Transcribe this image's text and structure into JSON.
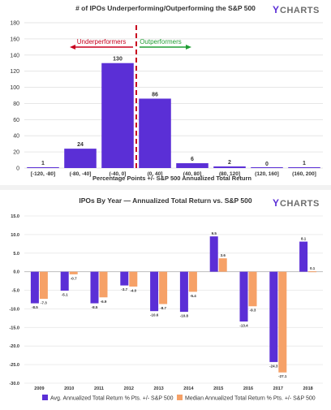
{
  "brand": {
    "logo_text": "YCHARTS",
    "colors": {
      "purple": "#5b2fd6",
      "orange": "#f6a167",
      "red": "#c8001e",
      "green": "#1f9e33",
      "logo_gray": "#6d6d6d"
    }
  },
  "chart_data": [
    {
      "type": "bar",
      "title": "# of IPOs Underperforming/Outperforming the S&P 500",
      "xlabel": "Percentage Points +/- S&P 500 Annualized Total Return",
      "ylabel": "",
      "categories": [
        "[-120, -80]",
        "(-80, -40]",
        "(-40, 0]",
        "(0, 40]",
        "(40, 80]",
        "(80, 120]",
        "(120, 160]",
        "(160, 200]"
      ],
      "values": [
        1,
        24,
        130,
        86,
        6,
        2,
        0,
        1
      ],
      "ylim": [
        0,
        180
      ],
      "yticks": [
        0,
        20,
        40,
        60,
        80,
        100,
        120,
        140,
        160,
        180
      ],
      "grid": true,
      "annotations": {
        "left_label": "Underperformers",
        "right_label": "Outperformers"
      }
    },
    {
      "type": "bar",
      "title": "IPOs By Year — Annualized Total Return vs. S&P 500",
      "xlabel": "",
      "ylabel": "",
      "categories": [
        "2009",
        "2010",
        "2011",
        "2012",
        "2013",
        "2014",
        "2015",
        "2016",
        "2017",
        "2018"
      ],
      "series": [
        {
          "name": "Avg. Annualized Total Return % Pts. +/- S&P 500",
          "values": [
            -8.5,
            -5.1,
            -8.5,
            -3.7,
            -10.6,
            -10.8,
            9.5,
            -13.4,
            -24.3,
            8.1
          ]
        },
        {
          "name": "Median Annualized Total Return % Pts. +/- S&P 500",
          "values": [
            -7.3,
            -0.7,
            -6.9,
            -4.0,
            -8.7,
            -5.4,
            3.6,
            -9.3,
            -27.1,
            0.1
          ]
        }
      ],
      "value_labels": [
        [
          "-8.5",
          "-5.1",
          "-8.5",
          "-3.7",
          "-10.6",
          "-10.8",
          "9.5",
          "-13.4",
          "-24.3",
          "8.1"
        ],
        [
          "-7.3",
          "-0.7",
          "-6.9",
          "-4.0",
          "-8.7",
          "-5.4",
          "3.6",
          "-9.3",
          "-27.1",
          "0.1"
        ]
      ],
      "ylim": [
        -30,
        15
      ],
      "yticks": [
        15,
        10,
        5,
        0,
        -5,
        -10,
        -15,
        -20,
        -25,
        -30
      ],
      "ytick_labels": [
        "15.0",
        "10.0",
        "5.0",
        "0.0",
        "-5.0",
        "-10.0",
        "-15.0",
        "-20.0",
        "-25.0",
        "-30.0"
      ],
      "grid": true,
      "legend_position": "bottom"
    }
  ]
}
